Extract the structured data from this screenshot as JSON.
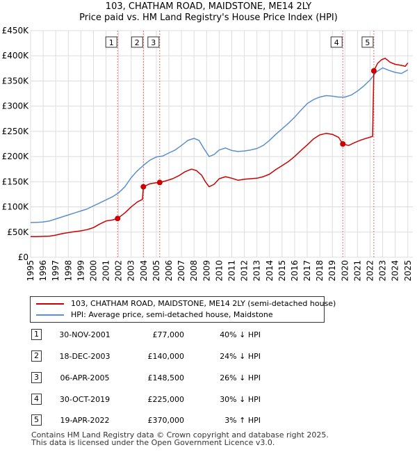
{
  "chart_data": {
    "type": "line",
    "title": "103, CHATHAM ROAD, MAIDSTONE, ME14 2LY",
    "subtitle": "Price paid vs. HM Land Registry's House Price Index (HPI)",
    "xlim": [
      1995,
      2025.4
    ],
    "ylim": [
      0,
      450000
    ],
    "x_ticks": [
      "1995",
      "1996",
      "1997",
      "1998",
      "1999",
      "2000",
      "2001",
      "2002",
      "2003",
      "2004",
      "2005",
      "2006",
      "2007",
      "2008",
      "2009",
      "2010",
      "2011",
      "2012",
      "2013",
      "2014",
      "2015",
      "2016",
      "2017",
      "2018",
      "2019",
      "2020",
      "2021",
      "2022",
      "2023",
      "2024",
      "2025"
    ],
    "y_ticks": [
      {
        "value": 0,
        "label": "£0"
      },
      {
        "value": 50000,
        "label": "£50K"
      },
      {
        "value": 100000,
        "label": "£100K"
      },
      {
        "value": 150000,
        "label": "£150K"
      },
      {
        "value": 200000,
        "label": "£200K"
      },
      {
        "value": 250000,
        "label": "£250K"
      },
      {
        "value": 300000,
        "label": "£300K"
      },
      {
        "value": 350000,
        "label": "£350K"
      },
      {
        "value": 400000,
        "label": "£400K"
      },
      {
        "value": 450000,
        "label": "£450K"
      }
    ],
    "series": [
      {
        "name": "103, CHATHAM ROAD, MAIDSTONE, ME14 2LY (semi-detached house)",
        "color": "#cc0000",
        "points": [
          [
            1995.0,
            41000
          ],
          [
            1995.5,
            41000
          ],
          [
            1996.0,
            41500
          ],
          [
            1996.5,
            42000
          ],
          [
            1997.0,
            44000
          ],
          [
            1997.5,
            47000
          ],
          [
            1998.0,
            49000
          ],
          [
            1998.5,
            51000
          ],
          [
            1999.0,
            52500
          ],
          [
            1999.5,
            55000
          ],
          [
            2000.0,
            59000
          ],
          [
            2000.5,
            66000
          ],
          [
            2001.0,
            72000
          ],
          [
            2001.5,
            74000
          ],
          [
            2001.92,
            77000
          ],
          [
            2002.5,
            88000
          ],
          [
            2003.0,
            100000
          ],
          [
            2003.5,
            110000
          ],
          [
            2003.9,
            115000
          ],
          [
            2003.97,
            140000
          ],
          [
            2004.5,
            146000
          ],
          [
            2005.0,
            148000
          ],
          [
            2005.27,
            148500
          ],
          [
            2005.8,
            152000
          ],
          [
            2006.3,
            156000
          ],
          [
            2006.8,
            162000
          ],
          [
            2007.3,
            170000
          ],
          [
            2007.8,
            175000
          ],
          [
            2008.2,
            172000
          ],
          [
            2008.6,
            163000
          ],
          [
            2008.9,
            150000
          ],
          [
            2009.2,
            140000
          ],
          [
            2009.6,
            145000
          ],
          [
            2010.0,
            156000
          ],
          [
            2010.5,
            160000
          ],
          [
            2011.0,
            157000
          ],
          [
            2011.5,
            153000
          ],
          [
            2012.0,
            155000
          ],
          [
            2012.5,
            156000
          ],
          [
            2013.0,
            157000
          ],
          [
            2013.5,
            160000
          ],
          [
            2014.0,
            165000
          ],
          [
            2014.5,
            174000
          ],
          [
            2015.0,
            182000
          ],
          [
            2015.5,
            190000
          ],
          [
            2016.0,
            200000
          ],
          [
            2016.5,
            212000
          ],
          [
            2017.0,
            223000
          ],
          [
            2017.5,
            235000
          ],
          [
            2018.0,
            243000
          ],
          [
            2018.5,
            246000
          ],
          [
            2019.0,
            244000
          ],
          [
            2019.5,
            238000
          ],
          [
            2019.83,
            225000
          ],
          [
            2020.3,
            222000
          ],
          [
            2020.8,
            228000
          ],
          [
            2021.3,
            233000
          ],
          [
            2021.8,
            237000
          ],
          [
            2022.2,
            240000
          ],
          [
            2022.3,
            370000
          ],
          [
            2022.6,
            385000
          ],
          [
            2022.9,
            392000
          ],
          [
            2023.2,
            395000
          ],
          [
            2023.6,
            387000
          ],
          [
            2024.0,
            383000
          ],
          [
            2024.5,
            381000
          ],
          [
            2024.8,
            379000
          ],
          [
            2025.0,
            386000
          ]
        ]
      },
      {
        "name": "HPI: Average price, semi-detached house, Maidstone",
        "color": "#5b8fcc",
        "points": [
          [
            1995.0,
            69000
          ],
          [
            1995.5,
            69500
          ],
          [
            1996.0,
            70000
          ],
          [
            1996.5,
            72000
          ],
          [
            1997.0,
            76000
          ],
          [
            1997.5,
            80000
          ],
          [
            1998.0,
            84000
          ],
          [
            1998.5,
            88000
          ],
          [
            1999.0,
            92000
          ],
          [
            1999.5,
            96000
          ],
          [
            2000.0,
            102000
          ],
          [
            2000.5,
            108000
          ],
          [
            2001.0,
            114000
          ],
          [
            2001.5,
            120000
          ],
          [
            2002.0,
            128000
          ],
          [
            2002.5,
            140000
          ],
          [
            2003.0,
            158000
          ],
          [
            2003.5,
            172000
          ],
          [
            2004.0,
            183000
          ],
          [
            2004.5,
            193000
          ],
          [
            2005.0,
            199000
          ],
          [
            2005.5,
            201000
          ],
          [
            2006.0,
            207000
          ],
          [
            2006.5,
            213000
          ],
          [
            2007.0,
            222000
          ],
          [
            2007.5,
            232000
          ],
          [
            2008.0,
            236000
          ],
          [
            2008.4,
            232000
          ],
          [
            2008.8,
            215000
          ],
          [
            2009.2,
            200000
          ],
          [
            2009.6,
            204000
          ],
          [
            2010.0,
            213000
          ],
          [
            2010.5,
            217000
          ],
          [
            2011.0,
            212000
          ],
          [
            2011.5,
            210000
          ],
          [
            2012.0,
            211000
          ],
          [
            2012.5,
            213000
          ],
          [
            2013.0,
            216000
          ],
          [
            2013.5,
            222000
          ],
          [
            2014.0,
            232000
          ],
          [
            2014.5,
            244000
          ],
          [
            2015.0,
            255000
          ],
          [
            2015.5,
            266000
          ],
          [
            2016.0,
            278000
          ],
          [
            2016.5,
            292000
          ],
          [
            2017.0,
            305000
          ],
          [
            2017.5,
            313000
          ],
          [
            2018.0,
            318000
          ],
          [
            2018.5,
            321000
          ],
          [
            2019.0,
            320000
          ],
          [
            2019.5,
            318000
          ],
          [
            2020.0,
            318000
          ],
          [
            2020.5,
            322000
          ],
          [
            2021.0,
            330000
          ],
          [
            2021.5,
            340000
          ],
          [
            2022.0,
            352000
          ],
          [
            2022.5,
            368000
          ],
          [
            2023.0,
            376000
          ],
          [
            2023.5,
            371000
          ],
          [
            2024.0,
            367000
          ],
          [
            2024.5,
            365000
          ],
          [
            2025.0,
            372000
          ]
        ]
      }
    ],
    "sales": [
      {
        "id": "1",
        "x": 2001.92,
        "price": 77000
      },
      {
        "id": "2",
        "x": 2003.97,
        "price": 140000
      },
      {
        "id": "3",
        "x": 2005.27,
        "price": 148500
      },
      {
        "id": "4",
        "x": 2019.83,
        "price": 225000
      },
      {
        "id": "5",
        "x": 2022.3,
        "price": 370000
      }
    ],
    "marker_boxes": [
      "1",
      "2",
      "3",
      "4",
      "5"
    ]
  },
  "legend": {
    "property_label": "103, CHATHAM ROAD, MAIDSTONE, ME14 2LY (semi-detached house)",
    "hpi_label": "HPI: Average price, semi-detached house, Maidstone"
  },
  "table": [
    {
      "num": "1",
      "date": "30-NOV-2001",
      "price": "£77,000",
      "hpi": "40% ↓ HPI"
    },
    {
      "num": "2",
      "date": "18-DEC-2003",
      "price": "£140,000",
      "hpi": "24% ↓ HPI"
    },
    {
      "num": "3",
      "date": "06-APR-2005",
      "price": "£148,500",
      "hpi": "26% ↓ HPI"
    },
    {
      "num": "4",
      "date": "30-OCT-2019",
      "price": "£225,000",
      "hpi": "30% ↓ HPI"
    },
    {
      "num": "5",
      "date": "19-APR-2022",
      "price": "£370,000",
      "hpi": "3% ↑ HPI"
    }
  ],
  "footer": {
    "line1": "Contains HM Land Registry data © Crown copyright and database right 2025.",
    "line2": "This data is licensed under the Open Government Licence v3.0."
  },
  "colors": {
    "property": "#cc0000",
    "hpi": "#5b8fcc",
    "grid": "#dddddd",
    "marker_line": "#e07070"
  }
}
